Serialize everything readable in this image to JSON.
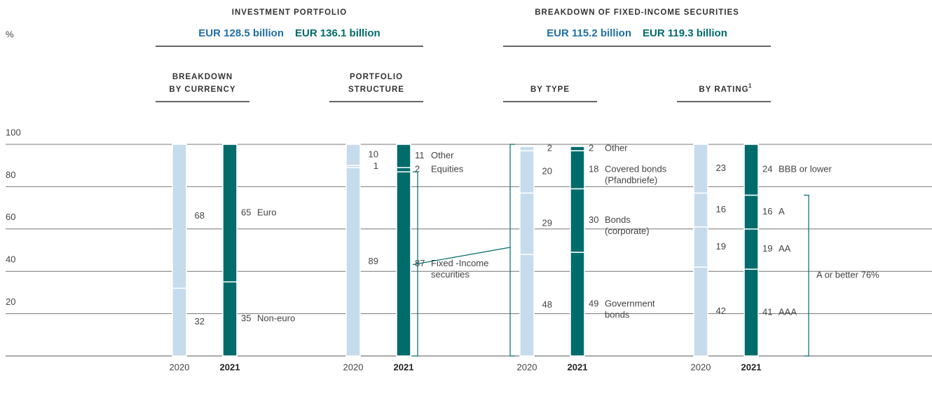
{
  "chart_data": {
    "type": "bar",
    "stacked": true,
    "y_label": "%",
    "ylim": [
      0,
      100
    ],
    "yticks": [
      20,
      40,
      60,
      80,
      100
    ],
    "grid": true,
    "year_colors": [
      "#c6dcec",
      "#006b6b"
    ],
    "sections": [
      {
        "title": "INVESTMENT PORTFOLIO",
        "amounts": [
          {
            "label": "EUR 128.5 billion",
            "color": "#1f6fa6"
          },
          {
            "label": "EUR 136.1 billion",
            "color": "#006b6b"
          }
        ]
      },
      {
        "title": "BREAKDOWN OF FIXED-INCOME SECURITIES",
        "amounts": [
          {
            "label": "EUR 115.2 billion",
            "color": "#1f6fa6"
          },
          {
            "label": "EUR 119.3 billion",
            "color": "#006b6b"
          }
        ]
      }
    ],
    "groups": [
      {
        "title": [
          "BREAKDOWN",
          "BY CURRENCY"
        ],
        "categories": [
          "2020",
          "2021"
        ],
        "series": [
          {
            "name": [
              "Non-euro"
            ],
            "values": [
              32,
              35
            ]
          },
          {
            "name": [
              "Euro"
            ],
            "values": [
              68,
              65
            ]
          }
        ]
      },
      {
        "title": [
          "PORTFOLIO",
          "STRUCTURE"
        ],
        "categories": [
          "2020",
          "2021"
        ],
        "series": [
          {
            "name": [
              "Fixed -Income",
              "securities"
            ],
            "values": [
              89,
              87
            ]
          },
          {
            "name": [
              "Equities"
            ],
            "values": [
              1,
              2
            ]
          },
          {
            "name": [
              "Other"
            ],
            "values": [
              10,
              11
            ]
          }
        ]
      },
      {
        "title": [
          "BY TYPE"
        ],
        "categories": [
          "2020",
          "2021"
        ],
        "series": [
          {
            "name": [
              "Government",
              "bonds"
            ],
            "values": [
              48,
              49
            ]
          },
          {
            "name": [
              "Bonds",
              "(corporate)"
            ],
            "values": [
              29,
              30
            ]
          },
          {
            "name": [
              "Covered bonds",
              "(Pfandbriefe)"
            ],
            "values": [
              20,
              18
            ]
          },
          {
            "name": [
              "Other"
            ],
            "values": [
              2,
              2
            ]
          }
        ]
      },
      {
        "title": [
          "BY RATING"
        ],
        "footnote_mark": "1",
        "categories": [
          "2020",
          "2021"
        ],
        "series": [
          {
            "name": [
              "AAA"
            ],
            "values": [
              42,
              41
            ]
          },
          {
            "name": [
              "AA"
            ],
            "values": [
              19,
              19
            ]
          },
          {
            "name": [
              "A"
            ],
            "values": [
              16,
              16
            ]
          },
          {
            "name": [
              "BBB or lower"
            ],
            "values": [
              23,
              24
            ]
          }
        ],
        "annotation": "A or better 76%"
      }
    ]
  }
}
